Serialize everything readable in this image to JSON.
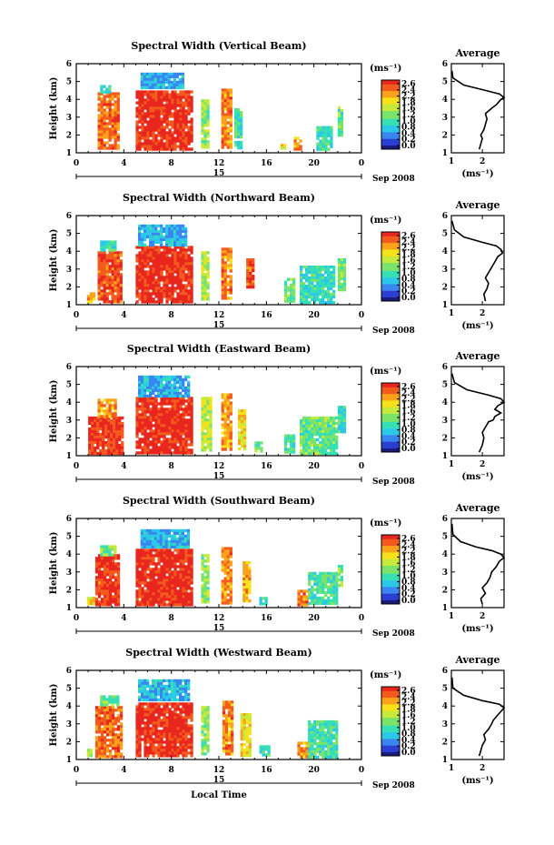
{
  "figure": {
    "xlabel": "Local Time",
    "date_label": "Sep 2008",
    "day_label": "15",
    "ylabel": "Height (km)",
    "unit_label": "(ms⁻¹)",
    "avg_title": "Average",
    "avg_xlabel": "(ms⁻¹)",
    "colorbar_ticks": [
      "2.6",
      "2.4",
      "2.2",
      "1.8",
      "1.6",
      "1.2",
      "1.0",
      "0.8",
      "0.4",
      "0.2",
      "0.0"
    ],
    "colormap": [
      "#1a1a7a",
      "#2b3fd1",
      "#3a86f0",
      "#2cc8e8",
      "#34e0b4",
      "#7be36a",
      "#c6ea3c",
      "#f5e21a",
      "#f9a21a",
      "#f25a1e",
      "#e8261e"
    ]
  },
  "chart_data": [
    {
      "type": "heatmap",
      "title": "Spectral Width (Vertical Beam)",
      "xlabel": "",
      "ylabel": "Height (km)",
      "x_ticks": [
        "0",
        "4",
        "8",
        "12",
        "16",
        "20",
        "0"
      ],
      "y_ticks": [
        "1",
        "2",
        "3",
        "4",
        "5",
        "6"
      ],
      "xlim": [
        0,
        24
      ],
      "ylim": [
        1,
        6
      ],
      "zlim": [
        0,
        2.6
      ],
      "blocks": [
        {
          "x": [
            1.8,
            3.6
          ],
          "y": [
            1.2,
            4.4
          ],
          "v": 2.3
        },
        {
          "x": [
            2.0,
            2.8
          ],
          "y": [
            4.4,
            4.8
          ],
          "v": 1.0
        },
        {
          "x": [
            5.0,
            9.8
          ],
          "y": [
            1.2,
            4.5
          ],
          "v": 2.6
        },
        {
          "x": [
            5.4,
            9.0
          ],
          "y": [
            4.6,
            5.5
          ],
          "v": 0.7
        },
        {
          "x": [
            10.5,
            11.1
          ],
          "y": [
            1.3,
            4.0
          ],
          "v": 1.4
        },
        {
          "x": [
            12.2,
            12.9
          ],
          "y": [
            1.3,
            4.6
          ],
          "v": 2.2
        },
        {
          "x": [
            13.3,
            13.8
          ],
          "y": [
            1.3,
            3.5
          ],
          "v": 1.1
        },
        {
          "x": [
            17.2,
            17.6
          ],
          "y": [
            1.2,
            1.5
          ],
          "v": 1.8
        },
        {
          "x": [
            18.3,
            18.9
          ],
          "y": [
            1.2,
            1.9
          ],
          "v": 2.1
        },
        {
          "x": [
            20.2,
            21.5
          ],
          "y": [
            1.2,
            2.5
          ],
          "v": 1.0
        },
        {
          "x": [
            22.0,
            22.4
          ],
          "y": [
            2.0,
            3.6
          ],
          "v": 1.2
        }
      ]
    },
    {
      "type": "heatmap",
      "title": "Spectral Width (Northward Beam)",
      "xlabel": "",
      "ylabel": "Height (km)",
      "x_ticks": [
        "0",
        "4",
        "8",
        "12",
        "16",
        "20",
        "0"
      ],
      "y_ticks": [
        "1",
        "2",
        "3",
        "4",
        "5",
        "6"
      ],
      "xlim": [
        0,
        24
      ],
      "ylim": [
        1,
        6
      ],
      "zlim": [
        0,
        2.6
      ],
      "blocks": [
        {
          "x": [
            0.9,
            1.4
          ],
          "y": [
            1.2,
            1.7
          ],
          "v": 2.0
        },
        {
          "x": [
            1.8,
            3.8
          ],
          "y": [
            1.2,
            4.0
          ],
          "v": 2.4
        },
        {
          "x": [
            2.0,
            3.2
          ],
          "y": [
            4.0,
            4.6
          ],
          "v": 1.1
        },
        {
          "x": [
            5.0,
            9.8
          ],
          "y": [
            1.2,
            4.3
          ],
          "v": 2.6
        },
        {
          "x": [
            5.2,
            9.2
          ],
          "y": [
            4.4,
            5.5
          ],
          "v": 0.7
        },
        {
          "x": [
            10.5,
            11.1
          ],
          "y": [
            1.3,
            4.0
          ],
          "v": 1.5
        },
        {
          "x": [
            12.2,
            12.9
          ],
          "y": [
            1.3,
            4.2
          ],
          "v": 2.2
        },
        {
          "x": [
            14.3,
            14.8
          ],
          "y": [
            2.0,
            3.6
          ],
          "v": 2.4
        },
        {
          "x": [
            17.5,
            18.2
          ],
          "y": [
            1.2,
            2.5
          ],
          "v": 1.2
        },
        {
          "x": [
            18.8,
            21.6
          ],
          "y": [
            1.2,
            3.2
          ],
          "v": 1.0
        },
        {
          "x": [
            22.0,
            22.6
          ],
          "y": [
            1.8,
            3.6
          ],
          "v": 1.3
        }
      ]
    },
    {
      "type": "heatmap",
      "title": "Spectral Width (Eastward Beam)",
      "xlabel": "",
      "ylabel": "Height (km)",
      "x_ticks": [
        "0",
        "4",
        "8",
        "12",
        "16",
        "20",
        "0"
      ],
      "y_ticks": [
        "1",
        "2",
        "3",
        "4",
        "5",
        "6"
      ],
      "xlim": [
        0,
        24
      ],
      "ylim": [
        1,
        6
      ],
      "zlim": [
        0,
        2.6
      ],
      "blocks": [
        {
          "x": [
            1.0,
            3.8
          ],
          "y": [
            1.2,
            3.2
          ],
          "v": 2.5
        },
        {
          "x": [
            1.8,
            3.4
          ],
          "y": [
            3.2,
            4.2
          ],
          "v": 2.1
        },
        {
          "x": [
            5.0,
            9.8
          ],
          "y": [
            1.2,
            4.3
          ],
          "v": 2.6
        },
        {
          "x": [
            5.2,
            9.4
          ],
          "y": [
            4.4,
            5.5
          ],
          "v": 0.7
        },
        {
          "x": [
            10.5,
            11.2
          ],
          "y": [
            1.3,
            4.3
          ],
          "v": 1.6
        },
        {
          "x": [
            12.2,
            13.0
          ],
          "y": [
            1.3,
            4.5
          ],
          "v": 2.1
        },
        {
          "x": [
            13.6,
            14.2
          ],
          "y": [
            1.4,
            3.6
          ],
          "v": 1.8
        },
        {
          "x": [
            15.0,
            15.6
          ],
          "y": [
            1.2,
            1.8
          ],
          "v": 1.3
        },
        {
          "x": [
            17.5,
            18.3
          ],
          "y": [
            1.2,
            2.2
          ],
          "v": 1.1
        },
        {
          "x": [
            18.8,
            21.8
          ],
          "y": [
            1.2,
            3.2
          ],
          "v": 1.2
        },
        {
          "x": [
            22.0,
            22.5
          ],
          "y": [
            2.4,
            3.8
          ],
          "v": 1.0
        }
      ]
    },
    {
      "type": "heatmap",
      "title": "Spectral Width (Southward Beam)",
      "xlabel": "",
      "ylabel": "Height (km)",
      "x_ticks": [
        "0",
        "4",
        "8",
        "12",
        "16",
        "20",
        "0"
      ],
      "y_ticks": [
        "1",
        "2",
        "3",
        "4",
        "5",
        "6"
      ],
      "xlim": [
        0,
        24
      ],
      "ylim": [
        1,
        6
      ],
      "zlim": [
        0,
        2.6
      ],
      "blocks": [
        {
          "x": [
            0.9,
            1.4
          ],
          "y": [
            1.2,
            1.6
          ],
          "v": 1.8
        },
        {
          "x": [
            1.6,
            3.6
          ],
          "y": [
            1.2,
            4.0
          ],
          "v": 2.5
        },
        {
          "x": [
            2.0,
            3.2
          ],
          "y": [
            4.0,
            4.5
          ],
          "v": 1.3
        },
        {
          "x": [
            5.0,
            9.8
          ],
          "y": [
            1.2,
            4.3
          ],
          "v": 2.6
        },
        {
          "x": [
            5.4,
            9.4
          ],
          "y": [
            4.4,
            5.4
          ],
          "v": 0.7
        },
        {
          "x": [
            10.5,
            11.1
          ],
          "y": [
            1.3,
            4.0
          ],
          "v": 1.4
        },
        {
          "x": [
            12.2,
            12.9
          ],
          "y": [
            1.3,
            4.4
          ],
          "v": 2.2
        },
        {
          "x": [
            14.0,
            14.5
          ],
          "y": [
            1.4,
            3.6
          ],
          "v": 2.0
        },
        {
          "x": [
            15.4,
            16.0
          ],
          "y": [
            1.2,
            1.6
          ],
          "v": 1.0
        },
        {
          "x": [
            18.6,
            19.3
          ],
          "y": [
            1.2,
            2.0
          ],
          "v": 2.2
        },
        {
          "x": [
            19.5,
            21.8
          ],
          "y": [
            1.2,
            3.0
          ],
          "v": 1.1
        },
        {
          "x": [
            22.0,
            22.4
          ],
          "y": [
            2.2,
            3.4
          ],
          "v": 1.3
        }
      ]
    },
    {
      "type": "heatmap",
      "title": "Spectral Width (Westward Beam)",
      "xlabel": "Local Time",
      "ylabel": "Height (km)",
      "x_ticks": [
        "0",
        "4",
        "8",
        "12",
        "16",
        "20",
        "0"
      ],
      "y_ticks": [
        "1",
        "2",
        "3",
        "4",
        "5",
        "6"
      ],
      "xlim": [
        0,
        24
      ],
      "ylim": [
        1,
        6
      ],
      "zlim": [
        0,
        2.6
      ],
      "blocks": [
        {
          "x": [
            0.9,
            1.3
          ],
          "y": [
            1.2,
            1.6
          ],
          "v": 1.4
        },
        {
          "x": [
            1.6,
            3.8
          ],
          "y": [
            1.2,
            4.0
          ],
          "v": 2.3
        },
        {
          "x": [
            2.0,
            3.4
          ],
          "y": [
            4.0,
            4.6
          ],
          "v": 1.2
        },
        {
          "x": [
            5.0,
            9.8
          ],
          "y": [
            1.2,
            4.2
          ],
          "v": 2.6
        },
        {
          "x": [
            5.2,
            9.4
          ],
          "y": [
            4.4,
            5.5
          ],
          "v": 0.7
        },
        {
          "x": [
            10.5,
            11.1
          ],
          "y": [
            1.3,
            4.0
          ],
          "v": 1.3
        },
        {
          "x": [
            12.3,
            13.0
          ],
          "y": [
            1.3,
            4.3
          ],
          "v": 2.2
        },
        {
          "x": [
            13.8,
            14.6
          ],
          "y": [
            1.3,
            3.6
          ],
          "v": 1.8
        },
        {
          "x": [
            15.4,
            16.2
          ],
          "y": [
            1.2,
            1.8
          ],
          "v": 1.0
        },
        {
          "x": [
            18.6,
            19.4
          ],
          "y": [
            1.2,
            2.0
          ],
          "v": 2.1
        },
        {
          "x": [
            19.5,
            22.0
          ],
          "y": [
            1.2,
            3.2
          ],
          "v": 1.1
        }
      ]
    },
    {
      "type": "line",
      "title": "Average",
      "xlabel": "(ms⁻¹)",
      "x_ticks": [
        "1",
        "2"
      ],
      "y_ticks": [
        "1",
        "2",
        "3",
        "4",
        "5",
        "6"
      ],
      "xlim": [
        1,
        2.7
      ],
      "ylim": [
        1,
        6
      ],
      "x": [
        1.9,
        1.95,
        2.0,
        1.95,
        2.05,
        2.1,
        2.15,
        2.1,
        2.3,
        2.45,
        2.55,
        2.6,
        2.7,
        2.55,
        2.1,
        1.4,
        1.05,
        1.02
      ],
      "y": [
        1.2,
        1.5,
        1.8,
        2.0,
        2.3,
        2.6,
        2.9,
        3.2,
        3.5,
        3.7,
        3.9,
        4.0,
        4.1,
        4.3,
        4.5,
        4.8,
        5.2,
        5.6
      ]
    },
    {
      "type": "line",
      "title": "Average",
      "xlabel": "(ms⁻¹)",
      "x_ticks": [
        "1",
        "2"
      ],
      "y_ticks": [
        "1",
        "2",
        "3",
        "4",
        "5",
        "6"
      ],
      "xlim": [
        1,
        2.7
      ],
      "ylim": [
        1,
        6
      ],
      "x": [
        2.1,
        2.05,
        2.15,
        2.2,
        2.1,
        2.2,
        2.3,
        2.4,
        2.5,
        2.65,
        2.6,
        2.45,
        2.0,
        1.4,
        1.1,
        1.02
      ],
      "y": [
        1.2,
        1.6,
        1.9,
        2.2,
        2.5,
        2.8,
        3.1,
        3.4,
        3.7,
        3.9,
        4.1,
        4.3,
        4.5,
        4.8,
        5.2,
        5.7
      ]
    },
    {
      "type": "line",
      "title": "Average",
      "xlabel": "(ms⁻¹)",
      "x_ticks": [
        "1",
        "2"
      ],
      "y_ticks": [
        "1",
        "2",
        "3",
        "4",
        "5",
        "6"
      ],
      "xlim": [
        1,
        2.7
      ],
      "ylim": [
        1,
        6
      ],
      "x": [
        1.9,
        2.0,
        2.05,
        2.0,
        2.1,
        2.2,
        2.35,
        2.4,
        2.6,
        2.4,
        2.5,
        2.7,
        2.6,
        2.2,
        1.5,
        1.1,
        1.02
      ],
      "y": [
        1.2,
        1.6,
        2.0,
        2.3,
        2.6,
        2.9,
        3.0,
        3.2,
        3.4,
        3.6,
        3.8,
        4.0,
        4.2,
        4.4,
        4.7,
        5.1,
        5.6
      ]
    },
    {
      "type": "line",
      "title": "Average",
      "xlabel": "(ms⁻¹)",
      "x_ticks": [
        "1",
        "2"
      ],
      "y_ticks": [
        "1",
        "2",
        "3",
        "4",
        "5",
        "6"
      ],
      "xlim": [
        1,
        2.7
      ],
      "ylim": [
        1,
        6
      ],
      "x": [
        2.0,
        1.95,
        2.1,
        2.0,
        2.15,
        2.25,
        2.3,
        2.45,
        2.55,
        2.7,
        2.6,
        2.3,
        1.8,
        1.3,
        1.05,
        1.02
      ],
      "y": [
        1.2,
        1.5,
        1.8,
        2.1,
        2.4,
        2.7,
        3.0,
        3.3,
        3.6,
        3.8,
        4.0,
        4.2,
        4.4,
        4.7,
        5.1,
        5.7
      ]
    },
    {
      "type": "line",
      "title": "Average",
      "xlabel": "(ms⁻¹)",
      "x_ticks": [
        "1",
        "2"
      ],
      "y_ticks": [
        "1",
        "2",
        "3",
        "4",
        "5",
        "6"
      ],
      "xlim": [
        1,
        2.7
      ],
      "ylim": [
        1,
        6
      ],
      "x": [
        1.9,
        1.95,
        2.0,
        2.1,
        2.05,
        2.2,
        2.3,
        2.35,
        2.5,
        2.6,
        2.7,
        2.55,
        2.0,
        1.4,
        1.05,
        1.02
      ],
      "y": [
        1.2,
        1.5,
        1.8,
        2.1,
        2.4,
        2.7,
        3.0,
        3.2,
        3.5,
        3.7,
        3.9,
        4.1,
        4.3,
        4.6,
        5.0,
        5.6
      ]
    }
  ]
}
